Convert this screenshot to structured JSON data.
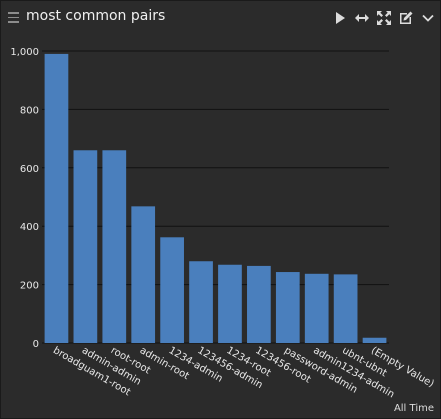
{
  "header": {
    "title": "most common pairs",
    "icons": [
      "menu-icon",
      "play-icon",
      "resize-horizontal-icon",
      "expand-icon",
      "edit-icon",
      "chevron-down-icon"
    ]
  },
  "footer": {
    "time_range": "All Time"
  },
  "colors": {
    "background": "#2b2b2b",
    "bar": "#4a7fbd",
    "grid": "#111111",
    "text": "#e8e8e8"
  },
  "chart_data": {
    "type": "bar",
    "title": "",
    "xlabel": "",
    "ylabel": "",
    "categories": [
      "broadguam1-root",
      "admin-admin",
      "root-root",
      "admin-root",
      "1234-admin",
      "123456-admin",
      "1234-root",
      "123456-root",
      "password-admin",
      "admin1234-admin",
      "ubnt-ubnt",
      "(Empty Value)"
    ],
    "values": [
      990,
      660,
      660,
      468,
      362,
      280,
      268,
      264,
      243,
      237,
      235,
      18
    ],
    "ylim": [
      0,
      1000
    ],
    "yticks": [
      0,
      200,
      400,
      600,
      800,
      1000
    ],
    "ytick_labels": [
      "0",
      "200",
      "400",
      "600",
      "800",
      "1,000"
    ],
    "grid": true,
    "legend": "none"
  }
}
